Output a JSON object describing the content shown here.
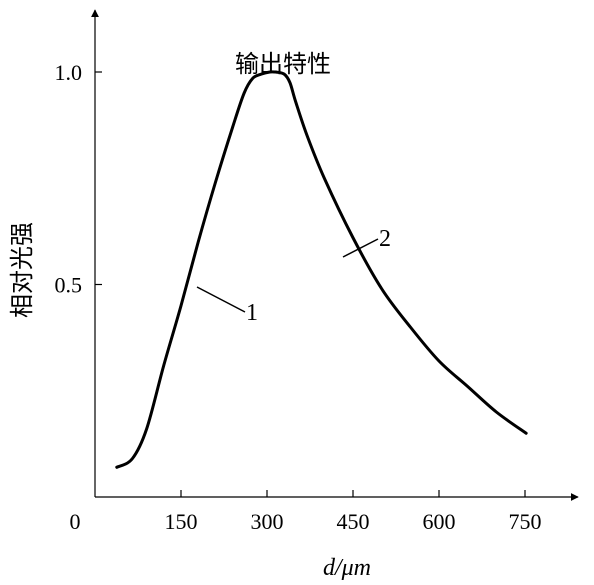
{
  "chart_data": {
    "type": "line",
    "title": "输出特性",
    "xlabel": "d/μm",
    "ylabel": "相对光强",
    "x_ticks": [
      "0",
      "150",
      "300",
      "450",
      "600",
      "750"
    ],
    "y_ticks": [
      "0.5",
      "1.0"
    ],
    "xlim": [
      0,
      900
    ],
    "ylim": [
      0,
      1.25
    ],
    "grid": false,
    "series": [
      {
        "name": "1",
        "x": [
          38,
          65,
          90,
          120,
          150,
          180,
          210,
          240,
          260,
          275,
          290,
          305,
          315
        ],
        "y": [
          0.07,
          0.09,
          0.16,
          0.31,
          0.45,
          0.6,
          0.74,
          0.87,
          0.95,
          0.985,
          0.995,
          1.0,
          1.0
        ]
      },
      {
        "name": "2",
        "x": [
          315,
          330,
          340,
          350,
          370,
          400,
          450,
          500,
          550,
          600,
          650,
          700,
          752
        ],
        "y": [
          1.0,
          0.995,
          0.975,
          0.93,
          0.85,
          0.75,
          0.61,
          0.49,
          0.4,
          0.32,
          0.26,
          0.2,
          0.15
        ]
      }
    ]
  }
}
